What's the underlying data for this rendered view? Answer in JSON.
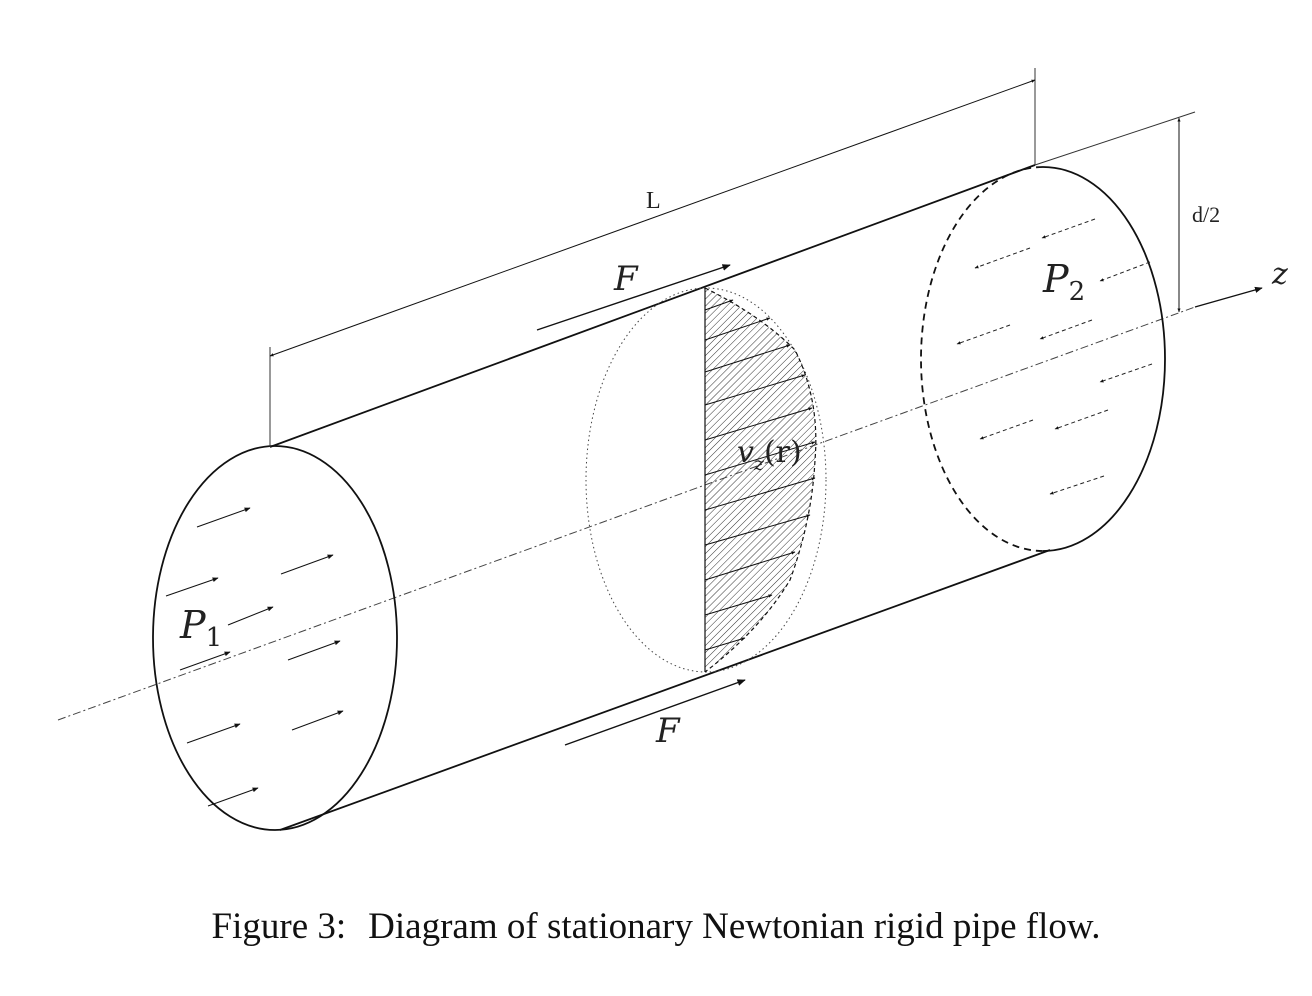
{
  "labels": {
    "length": "L",
    "half_diameter": "d/2",
    "axis": "z",
    "force_top": "F",
    "force_bottom": "F",
    "pressure_inlet": {
      "symbol": "P",
      "sub": "1"
    },
    "pressure_outlet": {
      "symbol": "P",
      "sub": "2"
    },
    "velocity_profile": {
      "symbol": "v",
      "sub": "z",
      "arg": "(r)"
    }
  },
  "caption": {
    "number": "Figure 3:",
    "text": "Diagram of stationary Newtonian rigid pipe flow."
  }
}
